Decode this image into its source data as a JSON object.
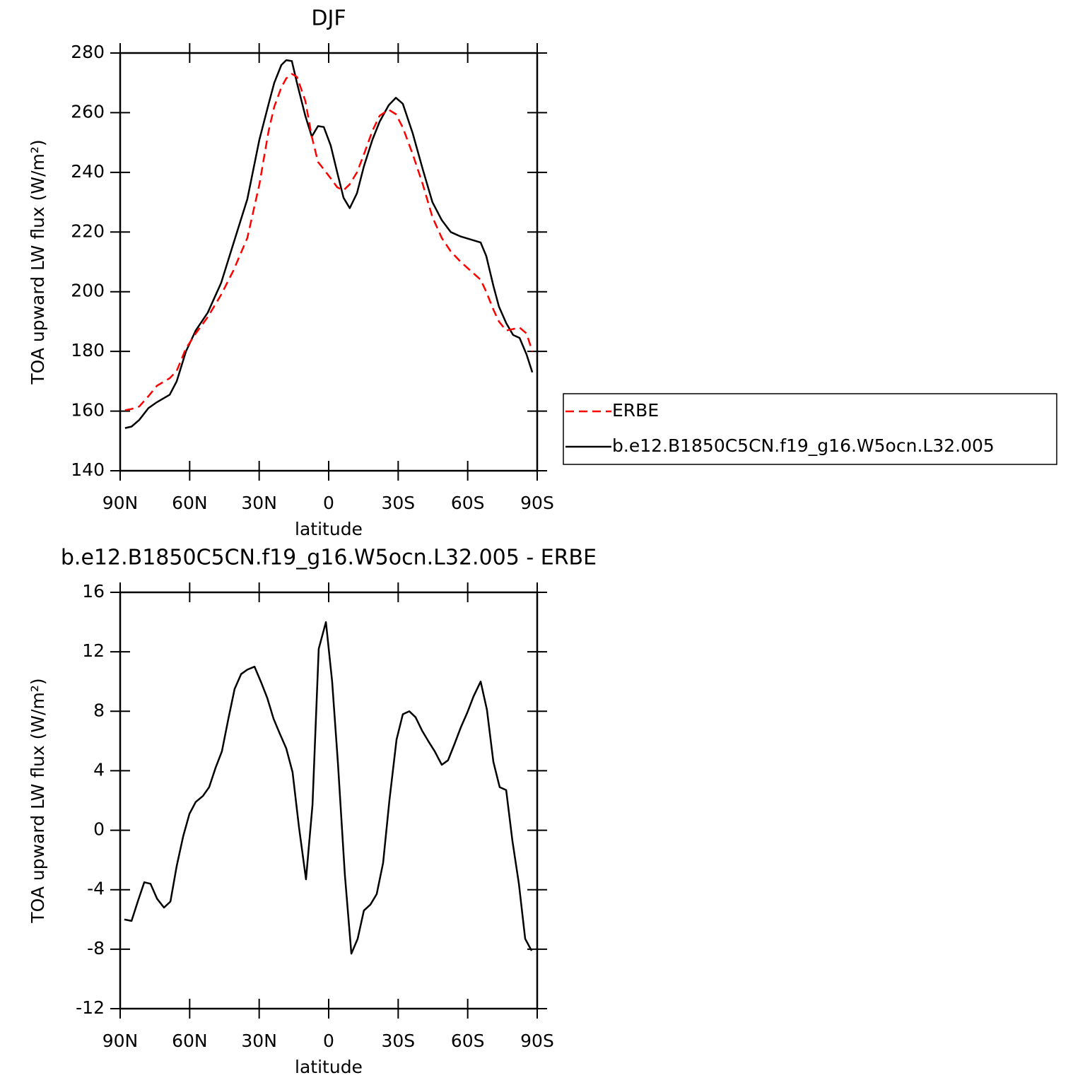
{
  "chart_data": [
    {
      "type": "line",
      "title": "DJF",
      "xlabel": "latitude",
      "ylabel": "TOA upward LW flux (W/m²)",
      "xlim": [
        90,
        -90
      ],
      "xticks": [
        {
          "value": 90,
          "label": "90N"
        },
        {
          "value": 60,
          "label": "60N"
        },
        {
          "value": 30,
          "label": "30N"
        },
        0,
        {
          "value": -30,
          "label": "30S"
        },
        {
          "value": -60,
          "label": "60S"
        },
        {
          "value": -90,
          "label": "90S"
        }
      ],
      "ylim": [
        140,
        280
      ],
      "yticks": [
        140,
        160,
        180,
        200,
        220,
        240,
        260,
        280
      ],
      "legend": "right",
      "x": [
        87.9,
        85.1,
        81.8,
        77.8,
        74.1,
        68.6,
        65.6,
        61.6,
        57.4,
        52.2,
        46.4,
        41.2,
        35.1,
        29.9,
        25.9,
        23.5,
        20.4,
        18.3,
        15.9,
        13.7,
        10.1,
        7.3,
        4.6,
        2.1,
        -0.9,
        -3.7,
        -6.4,
        -9.1,
        -12.2,
        -15.2,
        -18.9,
        -22.0,
        -25.9,
        -29.0,
        -32.0,
        -36.3,
        -40.6,
        -44.8,
        -48.8,
        -52.7,
        -57.0,
        -61.3,
        -65.6,
        -68.0,
        -71.1,
        -73.5,
        -76.6,
        -79.6,
        -82.4,
        -85.4,
        -87.9
      ],
      "series": [
        {
          "name": "ERBE",
          "color": "#ff0000",
          "dash": true,
          "values": [
            160.3,
            160.7,
            161.5,
            165,
            168.5,
            171,
            173.5,
            181,
            186,
            191.5,
            199,
            207,
            218,
            236,
            254,
            262,
            268.5,
            271.5,
            273,
            272,
            264,
            252,
            243.5,
            241,
            238,
            235,
            234,
            236,
            240,
            246,
            254,
            259,
            261,
            259.5,
            255,
            246,
            236,
            225,
            218,
            213.5,
            210,
            207,
            204,
            200,
            194,
            190,
            187,
            187.5,
            188,
            186,
            180
          ]
        },
        {
          "name": "b.e12.B1850C5CN.f19_g16.W5ocn.L32.005",
          "color": "#000000",
          "dash": false,
          "values": [
            154.3,
            154.8,
            157,
            161,
            163,
            165.5,
            170,
            180,
            187,
            193,
            203,
            216,
            231,
            251,
            263,
            270,
            276,
            277.6,
            277.3,
            270,
            259,
            252,
            255.5,
            255.2,
            249,
            240,
            231.5,
            228,
            233,
            242,
            251,
            257,
            262.5,
            265,
            263,
            253,
            241,
            230,
            224,
            220,
            218.5,
            217.5,
            216.5,
            212,
            202,
            195,
            189.5,
            185.5,
            184.5,
            179,
            173
          ]
        }
      ]
    },
    {
      "type": "line",
      "title": "b.e12.B1850C5CN.f19_g16.W5ocn.L32.005 - ERBE",
      "xlabel": "latitude",
      "ylabel": "TOA upward LW flux (W/m²)",
      "xlim": [
        90,
        -90
      ],
      "xticks": [
        {
          "value": 90,
          "label": "90N"
        },
        {
          "value": 60,
          "label": "60N"
        },
        {
          "value": 30,
          "label": "30N"
        },
        0,
        {
          "value": -30,
          "label": "30S"
        },
        {
          "value": -60,
          "label": "60S"
        },
        {
          "value": -90,
          "label": "90S"
        }
      ],
      "ylim": [
        -12,
        16
      ],
      "yticks": [
        -12,
        -8,
        -4,
        0,
        4,
        8,
        12,
        16
      ],
      "color": "#000000",
      "x": [
        88.2,
        85.1,
        82.4,
        79.6,
        76.9,
        74.1,
        71.1,
        68.3,
        65.6,
        62.8,
        60.1,
        57.4,
        54.3,
        51.6,
        48.8,
        46.1,
        43.3,
        40.6,
        37.8,
        35.1,
        32.0,
        29.3,
        26.5,
        23.8,
        21.1,
        18.3,
        15.6,
        12.8,
        9.8,
        7.0,
        4.3,
        1.2,
        -1.5,
        -4.0,
        -7.0,
        -9.8,
        -12.5,
        -15.2,
        -18.0,
        -20.7,
        -23.5,
        -26.2,
        -29.3,
        -32.0,
        -34.8,
        -37.5,
        -40.3,
        -43.0,
        -45.8,
        -48.8,
        -51.5,
        -54.3,
        -57.0,
        -59.8,
        -62.5,
        -65.6,
        -68.3,
        -71.1,
        -73.8,
        -76.6,
        -79.3,
        -82.1,
        -84.8,
        -87.6
      ],
      "values": [
        -6.0,
        -6.1,
        -4.8,
        -3.5,
        -3.6,
        -4.6,
        -5.2,
        -4.8,
        -2.4,
        -0.4,
        1.1,
        1.9,
        2.3,
        2.9,
        4.2,
        5.3,
        7.5,
        9.5,
        10.5,
        10.8,
        11.0,
        10.0,
        8.9,
        7.5,
        6.5,
        5.5,
        3.9,
        0.2,
        -3.3,
        1.7,
        12.2,
        14.0,
        10.0,
        4.5,
        -3.0,
        -8.3,
        -7.3,
        -5.4,
        -5.0,
        -4.3,
        -2.2,
        2.0,
        6.1,
        7.8,
        8.0,
        7.6,
        6.7,
        6.0,
        5.3,
        4.4,
        4.7,
        5.8,
        6.9,
        7.9,
        9.0,
        10.0,
        8.1,
        4.6,
        2.9,
        2.7,
        -0.7,
        -3.6,
        -7.3,
        -8.1
      ]
    }
  ]
}
